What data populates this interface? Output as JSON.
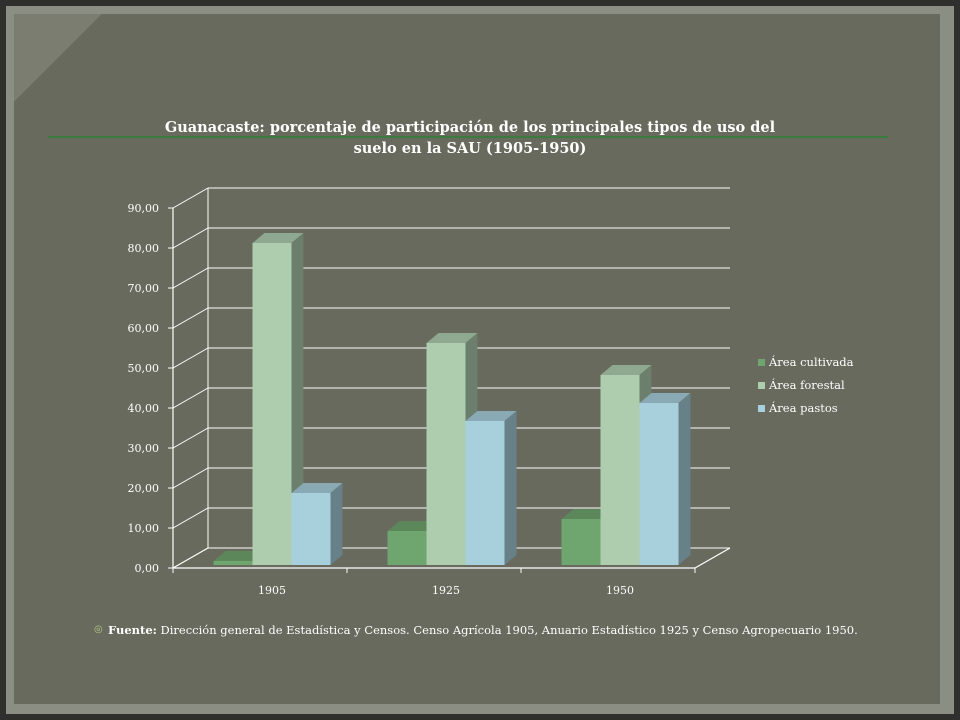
{
  "chart_data": {
    "type": "bar",
    "title": "Guanacaste: porcentaje de participación de los principales tipos de uso del\nsuelo en la SAU (1905-1950)",
    "categories": [
      "1905",
      "1925",
      "1950"
    ],
    "series": [
      {
        "name": "Área cultivada",
        "values": [
          1.0,
          8.5,
          11.5
        ],
        "color": "#6fa56f"
      },
      {
        "name": "Área forestal",
        "values": [
          80.5,
          55.5,
          47.5
        ],
        "color": "#aecdaf"
      },
      {
        "name": "Área pastos",
        "values": [
          18.0,
          36.0,
          40.5
        ],
        "color": "#a7cfdc"
      }
    ],
    "yticks": [
      "0,00",
      "10,00",
      "20,00",
      "30,00",
      "40,00",
      "50,00",
      "60,00",
      "70,00",
      "80,00",
      "90,00"
    ],
    "ylim": [
      0,
      90
    ],
    "grid": true,
    "legend": "right",
    "xlabel": "",
    "ylabel": ""
  },
  "source": {
    "bullet": "◎",
    "label": "Fuente:",
    "text": " Dirección general de Estadística y Censos. Censo Agrícola 1905, Anuario Estadístico 1925 y Censo Agropecuario 1950."
  }
}
